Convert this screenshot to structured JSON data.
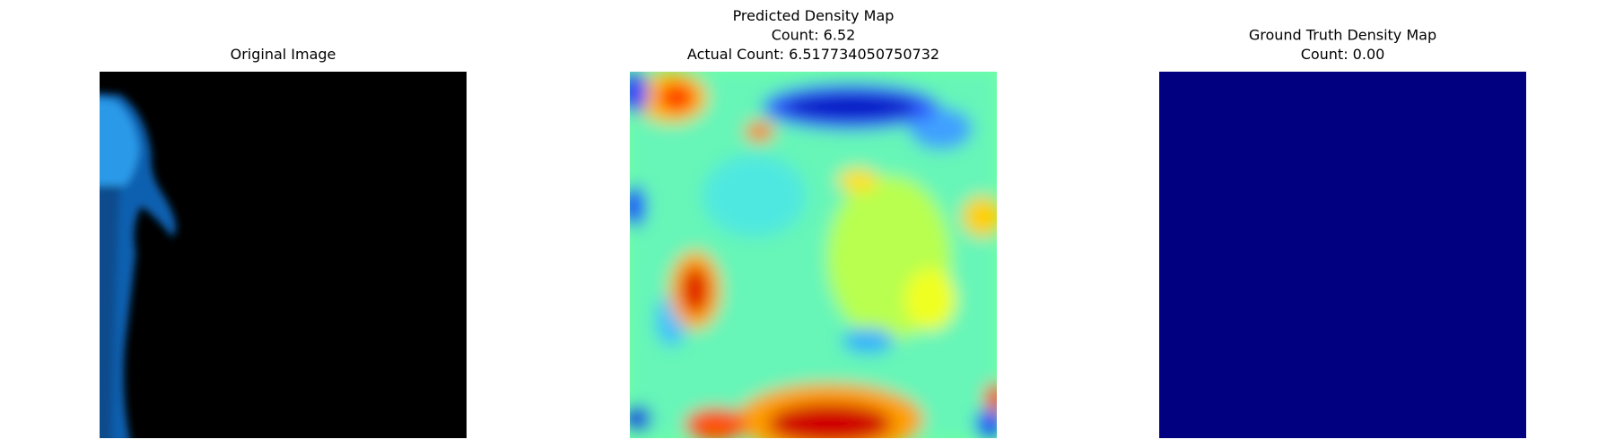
{
  "panels": [
    {
      "title_lines": [
        "Original Image"
      ]
    },
    {
      "title_lines": [
        "Predicted Density Map",
        "Count: 6.52",
        "Actual Count: 6.517734050750732"
      ]
    },
    {
      "title_lines": [
        "Ground Truth Density Map",
        "Count: 0.00"
      ]
    }
  ]
}
